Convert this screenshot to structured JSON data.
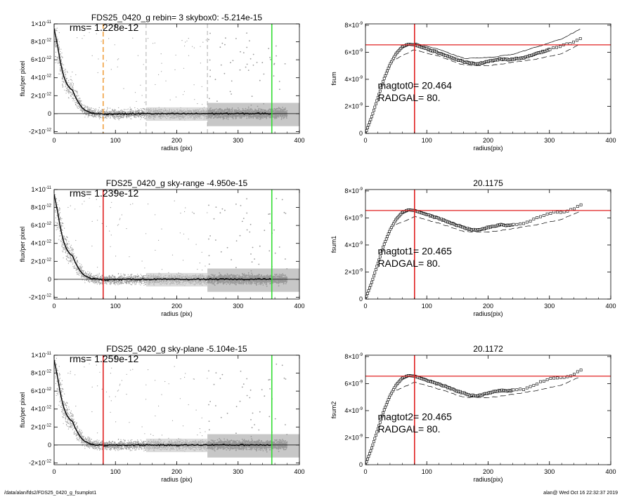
{
  "footer": {
    "path": "/data/alan/fds2/FDS25_0420_g_fsumplot1",
    "stamp": "alan@  Wed Oct 16 22:32:37 2019"
  },
  "colors": {
    "points": "#999999",
    "profile": "#000000",
    "red": "#e02020",
    "green": "#33dd33",
    "orange": "#f0a040",
    "grey_dash": "#b0b0b0"
  },
  "chart_data": [
    {
      "type": "scatter",
      "panel": "profile-1",
      "title": "FDS25_0420_g rebin= 3    skybox0: -5.214e-15",
      "xlabel": "radius (pix)",
      "ylabel": "flux/per pixel",
      "xlim": [
        0,
        400
      ],
      "ylim": [
        -2.2e-12,
        1e-11
      ],
      "xticks": [
        "0",
        "100",
        "200",
        "300",
        "400"
      ],
      "yticks": [
        {
          "v": 1e-11,
          "m": "1×10",
          "e": "-11"
        },
        {
          "v": 8e-12,
          "m": "8×10",
          "e": "-12"
        },
        {
          "v": 6e-12,
          "m": "6×10",
          "e": "-12"
        },
        {
          "v": 4e-12,
          "m": "4×10",
          "e": "-12"
        },
        {
          "v": 2e-12,
          "m": "2×10",
          "e": "-12"
        },
        {
          "v": 0,
          "m": "0",
          "e": ""
        },
        {
          "v": -2e-12,
          "m": "-2×10",
          "e": "-12"
        }
      ],
      "annotation": "rms= 1.228e-12",
      "markers": [
        {
          "x": 80,
          "color": "orange",
          "style": "dash"
        },
        {
          "x": 150,
          "color": "grey",
          "style": "dash"
        },
        {
          "x": 250,
          "color": "grey",
          "style": "dash"
        },
        {
          "x": 355,
          "color": "green",
          "style": "solid"
        }
      ],
      "profile": {
        "x": [
          0,
          5,
          10,
          15,
          20,
          25,
          30,
          35,
          40,
          45,
          50,
          60,
          70,
          80,
          100,
          150,
          200,
          250,
          300,
          355
        ],
        "y": [
          9.5e-12,
          7.8e-12,
          5.8e-12,
          4.3e-12,
          3.4e-12,
          2.9e-12,
          2.6e-12,
          1.8e-12,
          1.2e-12,
          7e-13,
          4e-13,
          1e-13,
          0,
          -5e-14,
          -3e-14,
          0,
          -2e-14,
          1e-14,
          0,
          2e-14
        ]
      },
      "scatter_noise": 3.5e-13,
      "dense_from": 250
    },
    {
      "type": "line",
      "panel": "fsum-0",
      "title": "",
      "xlabel": "radius(pix)",
      "ylabel": "fsum",
      "xlim": [
        0,
        400
      ],
      "ylim": [
        0,
        8.1e-09
      ],
      "xticks": [
        "0",
        "100",
        "200",
        "300",
        "400"
      ],
      "yticks": [
        {
          "v": 8e-09,
          "m": "8×10",
          "e": "-9"
        },
        {
          "v": 6e-09,
          "m": "6×10",
          "e": "-9"
        },
        {
          "v": 4e-09,
          "m": "4×10",
          "e": "-9"
        },
        {
          "v": 2e-09,
          "m": "2×10",
          "e": "-9"
        },
        {
          "v": 0,
          "m": "0",
          "e": ""
        }
      ],
      "annotations": [
        "magtot0=  20.464",
        "RADGAL=     80."
      ],
      "hline": 6.55e-09,
      "vline": 80,
      "curve": {
        "x": [
          0,
          10,
          20,
          30,
          40,
          50,
          60,
          70,
          80,
          90,
          100,
          110,
          120,
          130,
          140,
          150,
          160,
          170,
          180,
          190,
          200,
          210,
          220,
          230,
          240,
          250,
          260,
          270,
          280,
          290,
          300,
          310,
          320,
          330,
          340,
          350
        ],
        "y": [
          0,
          1.2e-09,
          2.6e-09,
          4e-09,
          5.1e-09,
          5.9e-09,
          6.4e-09,
          6.6e-09,
          6.55e-09,
          6.4e-09,
          6.25e-09,
          6.1e-09,
          5.95e-09,
          5.8e-09,
          5.6e-09,
          5.45e-09,
          5.3e-09,
          5.2e-09,
          5.15e-09,
          5.2e-09,
          5.35e-09,
          5.4e-09,
          5.5e-09,
          5.45e-09,
          5.5e-09,
          5.55e-09,
          5.6e-09,
          5.75e-09,
          5.95e-09,
          6.05e-09,
          6.2e-09,
          6.35e-09,
          6.5e-09,
          6.6e-09,
          6.8e-09,
          7e-09
        ]
      },
      "upper": {
        "x": [
          80,
          120,
          160,
          200,
          240,
          280,
          320,
          350
        ],
        "y": [
          6.7e-09,
          6.2e-09,
          5.55e-09,
          5.6e-09,
          5.85e-09,
          6.4e-09,
          7e-09,
          7.7e-09
        ]
      },
      "lower": {
        "x": [
          50,
          80,
          120,
          160,
          200,
          240,
          280,
          320,
          350
        ],
        "y": [
          5.5e-09,
          6.2e-09,
          5.7e-09,
          5.05e-09,
          5e-09,
          5.25e-09,
          5.5e-09,
          5.9e-09,
          6.6e-09
        ]
      },
      "squares_from": 300
    },
    {
      "type": "scatter",
      "panel": "profile-2",
      "title": "FDS25_0420_g sky-range -4.950e-15",
      "xlabel": "radius (pix)",
      "ylabel": "flux/per pixel",
      "xlim": [
        0,
        400
      ],
      "ylim": [
        -2.2e-12,
        1e-11
      ],
      "xticks": [
        "0",
        "100",
        "200",
        "300",
        "400"
      ],
      "yticks": [
        {
          "v": 1e-11,
          "m": "1×10",
          "e": "-11"
        },
        {
          "v": 8e-12,
          "m": "8×10",
          "e": "-12"
        },
        {
          "v": 6e-12,
          "m": "6×10",
          "e": "-12"
        },
        {
          "v": 4e-12,
          "m": "4×10",
          "e": "-12"
        },
        {
          "v": 2e-12,
          "m": "2×10",
          "e": "-12"
        },
        {
          "v": 0,
          "m": "0",
          "e": ""
        },
        {
          "v": -2e-12,
          "m": "-2×10",
          "e": "-12"
        }
      ],
      "annotation": "rms= 1.239e-12",
      "markers": [
        {
          "x": 80,
          "color": "red",
          "style": "solid"
        },
        {
          "x": 355,
          "color": "green",
          "style": "solid"
        }
      ],
      "profile": {
        "x": [
          0,
          5,
          10,
          15,
          20,
          25,
          30,
          35,
          40,
          45,
          50,
          60,
          70,
          80,
          100,
          150,
          200,
          250,
          300,
          355
        ],
        "y": [
          9.5e-12,
          7.8e-12,
          5.8e-12,
          4.3e-12,
          3.4e-12,
          2.9e-12,
          2.6e-12,
          1.8e-12,
          1.2e-12,
          7e-13,
          4e-13,
          1e-13,
          0,
          -5e-14,
          -3e-14,
          0,
          -2e-14,
          1e-14,
          0,
          2e-14
        ]
      },
      "scatter_noise": 3.5e-13,
      "dense_from": 250
    },
    {
      "type": "line",
      "panel": "fsum-1",
      "title": "20.1175",
      "xlabel": "radius(pix)",
      "ylabel": "fsum1",
      "xlim": [
        0,
        400
      ],
      "ylim": [
        0,
        8.1e-09
      ],
      "xticks": [
        "0",
        "100",
        "200",
        "300",
        "400"
      ],
      "yticks": [
        {
          "v": 8e-09,
          "m": "8×10",
          "e": "-9"
        },
        {
          "v": 6e-09,
          "m": "6×10",
          "e": "-9"
        },
        {
          "v": 4e-09,
          "m": "4×10",
          "e": "-9"
        },
        {
          "v": 2e-09,
          "m": "2×10",
          "e": "-9"
        },
        {
          "v": 0,
          "m": "0",
          "e": ""
        }
      ],
      "annotations": [
        "magtot1=  20.465",
        "RADGAL=     80."
      ],
      "hline": 6.55e-09,
      "vline": 80,
      "curve": {
        "x": [
          0,
          10,
          20,
          30,
          40,
          50,
          60,
          70,
          80,
          90,
          100,
          110,
          120,
          130,
          140,
          150,
          160,
          170,
          180,
          190,
          200,
          210,
          220,
          230,
          240,
          250,
          260,
          270,
          280,
          290,
          300,
          310,
          320,
          330,
          340,
          350
        ],
        "y": [
          0,
          1.2e-09,
          2.6e-09,
          4e-09,
          5.1e-09,
          5.9e-09,
          6.4e-09,
          6.6e-09,
          6.55e-09,
          6.4e-09,
          6.25e-09,
          6.1e-09,
          5.95e-09,
          5.8e-09,
          5.6e-09,
          5.45e-09,
          5.3e-09,
          5.15e-09,
          5.1e-09,
          5.15e-09,
          5.3e-09,
          5.4e-09,
          5.5e-09,
          5.45e-09,
          5.5e-09,
          5.55e-09,
          5.6e-09,
          5.8e-09,
          6e-09,
          6.2e-09,
          6.35e-09,
          6.45e-09,
          6.45e-09,
          6.5e-09,
          6.7e-09,
          7e-09
        ]
      },
      "upper": null,
      "lower": {
        "x": [
          50,
          80,
          120,
          160,
          200,
          240,
          280,
          320,
          350
        ],
        "y": [
          5.5e-09,
          6.1e-09,
          5.6e-09,
          5e-09,
          4.95e-09,
          5.2e-09,
          5.5e-09,
          5.9e-09,
          6.5e-09
        ]
      },
      "squares_from": 240
    },
    {
      "type": "scatter",
      "panel": "profile-3",
      "title": "FDS25_0420_g sky-plane -5.104e-15",
      "xlabel": "radius (pix)",
      "ylabel": "flux/per pixel",
      "xlim": [
        0,
        400
      ],
      "ylim": [
        -2.2e-12,
        1e-11
      ],
      "xticks": [
        "0",
        "100",
        "200",
        "300",
        "400"
      ],
      "yticks": [
        {
          "v": 1e-11,
          "m": "1×10",
          "e": "-11"
        },
        {
          "v": 8e-12,
          "m": "8×10",
          "e": "-12"
        },
        {
          "v": 6e-12,
          "m": "6×10",
          "e": "-12"
        },
        {
          "v": 4e-12,
          "m": "4×10",
          "e": "-12"
        },
        {
          "v": 2e-12,
          "m": "2×10",
          "e": "-12"
        },
        {
          "v": 0,
          "m": "0",
          "e": ""
        },
        {
          "v": -2e-12,
          "m": "-2×10",
          "e": "-12"
        }
      ],
      "annotation": "rms= 1.259e-12",
      "markers": [
        {
          "x": 80,
          "color": "red",
          "style": "solid"
        },
        {
          "x": 355,
          "color": "green",
          "style": "solid"
        }
      ],
      "profile": {
        "x": [
          0,
          5,
          10,
          15,
          20,
          25,
          30,
          35,
          40,
          45,
          50,
          60,
          70,
          80,
          100,
          150,
          200,
          250,
          300,
          355
        ],
        "y": [
          9.5e-12,
          7.8e-12,
          5.8e-12,
          4.3e-12,
          3.4e-12,
          2.9e-12,
          2.6e-12,
          1.8e-12,
          1.2e-12,
          7e-13,
          4e-13,
          1e-13,
          0,
          -5e-14,
          -3e-14,
          0,
          -2e-14,
          1e-14,
          0,
          2e-14
        ]
      },
      "scatter_noise": 3.5e-13,
      "dense_from": 250
    },
    {
      "type": "line",
      "panel": "fsum-2",
      "title": "20.1172",
      "xlabel": "radius(pix)",
      "ylabel": "fsum2",
      "xlim": [
        0,
        400
      ],
      "ylim": [
        0,
        8.1e-09
      ],
      "xticks": [
        "0",
        "100",
        "200",
        "300",
        "400"
      ],
      "yticks": [
        {
          "v": 8e-09,
          "m": "8×10",
          "e": "-9"
        },
        {
          "v": 6e-09,
          "m": "6×10",
          "e": "-9"
        },
        {
          "v": 4e-09,
          "m": "4×10",
          "e": "-9"
        },
        {
          "v": 2e-09,
          "m": "2×10",
          "e": "-9"
        },
        {
          "v": 0,
          "m": "0",
          "e": ""
        }
      ],
      "annotations": [
        "magtot2=  20.465",
        "RADGAL=     80."
      ],
      "hline": 6.55e-09,
      "vline": 80,
      "curve": {
        "x": [
          0,
          10,
          20,
          30,
          40,
          50,
          60,
          70,
          80,
          90,
          100,
          110,
          120,
          130,
          140,
          150,
          160,
          170,
          180,
          190,
          200,
          210,
          220,
          230,
          240,
          250,
          260,
          270,
          280,
          290,
          300,
          310,
          320,
          330,
          340,
          350
        ],
        "y": [
          0,
          1.2e-09,
          2.6e-09,
          4e-09,
          5.1e-09,
          5.9e-09,
          6.4e-09,
          6.6e-09,
          6.55e-09,
          6.4e-09,
          6.25e-09,
          6.1e-09,
          5.95e-09,
          5.8e-09,
          5.6e-09,
          5.45e-09,
          5.3e-09,
          5.15e-09,
          5.1e-09,
          5.15e-09,
          5.3e-09,
          5.4e-09,
          5.5e-09,
          5.45e-09,
          5.5e-09,
          5.55e-09,
          5.6e-09,
          5.8e-09,
          6e-09,
          6.2e-09,
          6.35e-09,
          6.45e-09,
          6.45e-09,
          6.5e-09,
          6.7e-09,
          7e-09
        ]
      },
      "upper": null,
      "lower": {
        "x": [
          50,
          80,
          120,
          160,
          200,
          240,
          280,
          320,
          350
        ],
        "y": [
          5.5e-09,
          6.1e-09,
          5.6e-09,
          5e-09,
          4.95e-09,
          5.2e-09,
          5.5e-09,
          5.9e-09,
          6.5e-09
        ]
      },
      "squares_from": 240
    }
  ]
}
